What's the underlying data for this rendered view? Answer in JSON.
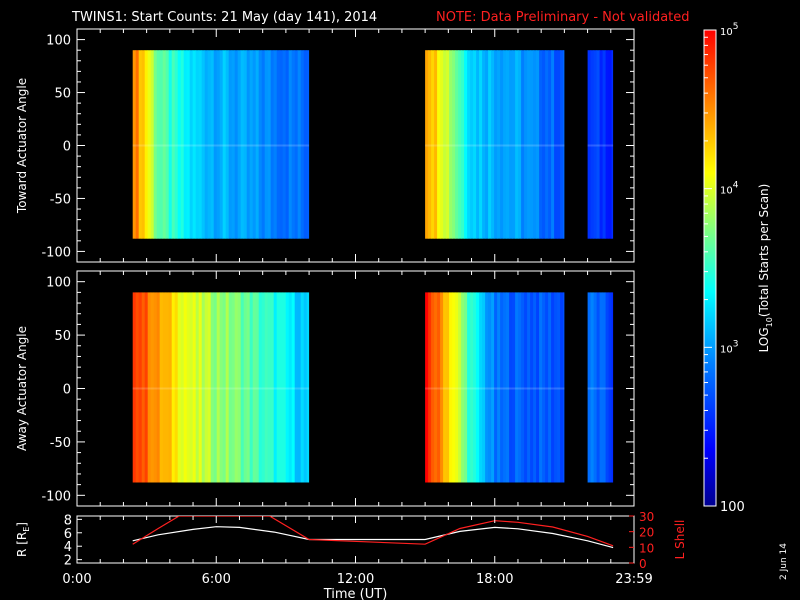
{
  "header": {
    "title": "TWINS1: Start Counts: 21 May (day 141), 2014",
    "note": "NOTE: Data Preliminary - Not validated"
  },
  "stamp": "2 Jun 14",
  "colorbar": {
    "label_pre": "LOG",
    "label_sub": "10",
    "label_post": "(Total Starts per Scan)",
    "ticks": [
      {
        "base": "10",
        "exp": "5",
        "value": 100000
      },
      {
        "base": "10",
        "exp": "4",
        "value": 10000
      },
      {
        "base": "10",
        "exp": "3",
        "value": 1000
      },
      {
        "base": "100",
        "exp": "",
        "value": 100
      }
    ],
    "range": [
      100,
      100000
    ],
    "scale": "log"
  },
  "colors": {
    "background": "#000000",
    "axes": "#ffffff",
    "note": "#ff2020",
    "l_shell": "#ff2020",
    "r_earth": "#ffffff"
  },
  "chart_data": [
    {
      "type": "heatmap",
      "title": "",
      "ylabel": "Toward Actuator Angle",
      "xlim": [
        0,
        24
      ],
      "ylim": [
        -110,
        110
      ],
      "yticks": [
        "100",
        "50",
        "0",
        "-50",
        "-100"
      ],
      "angle_range": [
        -88,
        90
      ],
      "blocks": [
        {
          "start_hr": 2.4,
          "end_hr": 10.0
        },
        {
          "start_hr": 15.0,
          "end_hr": 21.0
        },
        {
          "start_hr": 22.0,
          "end_hr": 23.1
        }
      ],
      "log_counts_profile": [
        {
          "hr": 2.4,
          "v": 4.6
        },
        {
          "hr": 2.8,
          "v": 4.3
        },
        {
          "hr": 3.5,
          "v": 3.6
        },
        {
          "hr": 5.0,
          "v": 3.2
        },
        {
          "hr": 7.0,
          "v": 3.0
        },
        {
          "hr": 10.0,
          "v": 2.8
        },
        {
          "hr": 15.0,
          "v": 4.5
        },
        {
          "hr": 15.7,
          "v": 4.1
        },
        {
          "hr": 17.0,
          "v": 3.2
        },
        {
          "hr": 19.0,
          "v": 3.0
        },
        {
          "hr": 21.0,
          "v": 2.7
        },
        {
          "hr": 22.0,
          "v": 2.6
        },
        {
          "hr": 23.1,
          "v": 2.55
        }
      ]
    },
    {
      "type": "heatmap",
      "title": "",
      "ylabel": "Away Actuator Angle",
      "xlim": [
        0,
        24
      ],
      "ylim": [
        -110,
        110
      ],
      "yticks": [
        "100",
        "50",
        "0",
        "-50",
        "-100"
      ],
      "angle_range": [
        -88,
        90
      ],
      "blocks": [
        {
          "start_hr": 2.4,
          "end_hr": 10.0
        },
        {
          "start_hr": 15.0,
          "end_hr": 21.0
        },
        {
          "start_hr": 22.0,
          "end_hr": 23.1
        }
      ],
      "log_counts_profile": [
        {
          "hr": 2.4,
          "v": 4.9
        },
        {
          "hr": 3.5,
          "v": 4.4
        },
        {
          "hr": 5.0,
          "v": 3.95
        },
        {
          "hr": 7.0,
          "v": 3.7
        },
        {
          "hr": 10.0,
          "v": 3.1
        },
        {
          "hr": 15.0,
          "v": 4.9
        },
        {
          "hr": 15.8,
          "v": 4.4
        },
        {
          "hr": 17.0,
          "v": 3.4
        },
        {
          "hr": 18.0,
          "v": 2.8
        },
        {
          "hr": 21.0,
          "v": 2.7
        },
        {
          "hr": 22.0,
          "v": 2.85
        },
        {
          "hr": 23.1,
          "v": 2.6
        }
      ]
    },
    {
      "type": "line",
      "title": "",
      "xlabel": "Time (UT)",
      "xlim": [
        0,
        24
      ],
      "xticks": [
        "0:00",
        "6:00",
        "12:00",
        "18:00",
        "23:59"
      ],
      "ylabel_left": {
        "pre": "R [R",
        "sub": "E",
        "post": "]"
      },
      "ylabel_right": "L Shell",
      "ylim_left": [
        1.5,
        8.5
      ],
      "yticks_left": [
        "8",
        "6",
        "4",
        "2"
      ],
      "ylim_right": [
        0,
        30
      ],
      "yticks_right": [
        "30",
        "20",
        "10",
        "0"
      ],
      "series": [
        {
          "axis": "left",
          "color": "#ffffff",
          "x": [
            2.4,
            3.5,
            5.0,
            6.0,
            7.0,
            8.5,
            10.0,
            15.0,
            16.5,
            18.0,
            19.0,
            20.5,
            22.0,
            23.1
          ],
          "y": [
            4.8,
            5.7,
            6.5,
            6.9,
            6.8,
            6.1,
            5.0,
            5.0,
            6.2,
            6.8,
            6.6,
            5.9,
            4.8,
            3.8
          ]
        },
        {
          "axis": "right",
          "color": "#ff2020",
          "x": [
            2.4,
            3.5,
            4.4,
            8.3,
            10.0,
            15.0,
            16.5,
            18.0,
            19.0,
            20.5,
            22.0,
            23.1
          ],
          "y": [
            12,
            22,
            30,
            30,
            15,
            12,
            22,
            27,
            26,
            23,
            17,
            11
          ]
        }
      ]
    }
  ]
}
